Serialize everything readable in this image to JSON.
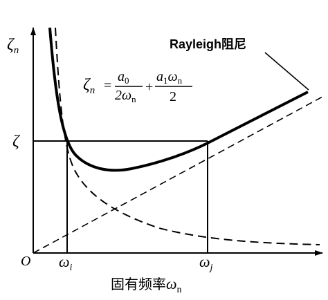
{
  "y_axis_label": {
    "symbol": "ζ",
    "subscript": "n"
  },
  "x_axis_label": {
    "text": "固有频率",
    "symbol": "ω",
    "subscript": "n"
  },
  "origin_label": "O",
  "zeta_label": "ζ",
  "omega_i": {
    "symbol": "ω",
    "subscript": "i"
  },
  "omega_j": {
    "symbol": "ω",
    "subscript": "j"
  },
  "curve_label": "Rayleigh阻尼",
  "formula": {
    "lhs": {
      "symbol": "ζ",
      "subscript": "n"
    },
    "equals": "=",
    "term1": {
      "num": "a",
      "num_sub": "0",
      "den": "2ω",
      "den_sub": "n"
    },
    "plus": "+",
    "term2": {
      "num": "a",
      "num_sub": "1",
      "num2": "ω",
      "num2_sub": "n",
      "den": "2"
    }
  }
}
